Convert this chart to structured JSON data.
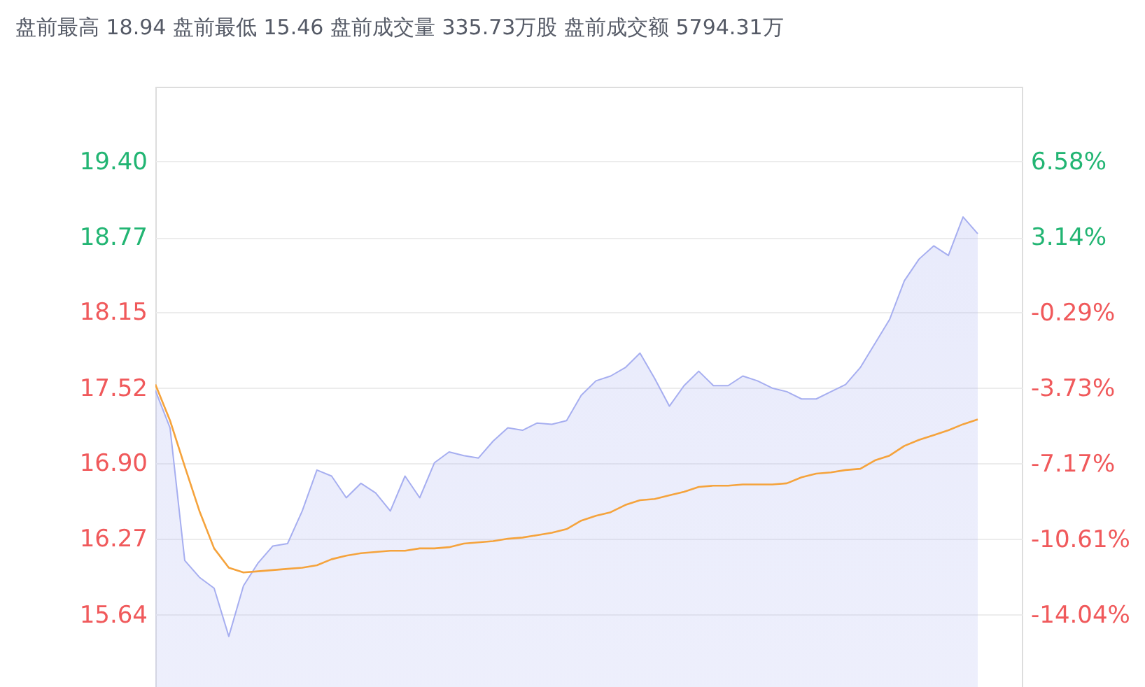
{
  "chart_data": {
    "type": "line",
    "title": "盘前最高 18.94 盘前最低 15.46 盘前成交量 335.73万股 盘前成交额 5794.31万",
    "categories": [
      null,
      null,
      null,
      null,
      null,
      null,
      null,
      null,
      null,
      null,
      null,
      null,
      null,
      null,
      null,
      null,
      null,
      null,
      null,
      null,
      null,
      null,
      null,
      null,
      null,
      null,
      null,
      null,
      null,
      null,
      null,
      null,
      null,
      null,
      null,
      null,
      null,
      null,
      null,
      null,
      null,
      null,
      null,
      null,
      null,
      null,
      null,
      null,
      null,
      null,
      null,
      null,
      null,
      null,
      null,
      null,
      null,
      null,
      null,
      null
    ],
    "series": [
      {
        "type": "area",
        "color": "#a6aef0",
        "values": [
          17.5,
          17.19,
          16.09,
          15.95,
          15.86,
          15.46,
          15.88,
          16.07,
          16.21,
          16.23,
          16.5,
          16.84,
          16.79,
          16.61,
          16.73,
          16.65,
          16.5,
          16.79,
          16.61,
          16.9,
          16.99,
          16.96,
          16.94,
          17.08,
          17.19,
          17.17,
          17.23,
          17.22,
          17.25,
          17.46,
          17.58,
          17.62,
          17.69,
          17.81,
          17.6,
          17.37,
          17.54,
          17.66,
          17.54,
          17.54,
          17.62,
          17.58,
          17.52,
          17.49,
          17.43,
          17.43,
          17.49,
          17.55,
          17.69,
          17.89,
          18.09,
          18.41,
          18.59,
          18.7,
          18.62,
          18.94,
          18.8,
          null,
          null,
          null
        ]
      },
      {
        "color": "#f5a33c",
        "values": [
          17.55,
          17.25,
          16.87,
          16.5,
          16.19,
          16.03,
          15.99,
          16.0,
          16.01,
          16.02,
          16.03,
          16.05,
          16.1,
          16.13,
          16.15,
          16.16,
          16.17,
          16.17,
          16.19,
          16.19,
          16.2,
          16.23,
          16.24,
          16.25,
          16.27,
          16.28,
          16.3,
          16.32,
          16.35,
          16.42,
          16.46,
          16.49,
          16.55,
          16.59,
          16.6,
          16.63,
          16.66,
          16.7,
          16.71,
          16.71,
          16.72,
          16.72,
          16.72,
          16.73,
          16.78,
          16.81,
          16.82,
          16.84,
          16.85,
          16.92,
          16.96,
          17.04,
          17.09,
          17.13,
          17.17,
          17.22,
          17.26,
          null,
          null,
          null
        ]
      }
    ],
    "ylim": [
      15.04,
      20.02
    ],
    "yticks": [
      {
        "value": 15.64,
        "label": "15.64"
      },
      {
        "value": 16.27,
        "label": "16.27"
      },
      {
        "value": 16.9,
        "label": "16.90"
      },
      {
        "value": 17.52,
        "label": "17.52"
      },
      {
        "value": 18.15,
        "label": "18.15"
      },
      {
        "value": 18.77,
        "label": "18.77"
      },
      {
        "value": 19.4,
        "label": "19.40"
      }
    ],
    "y2lim": [
      -17.33,
      9.98
    ],
    "y2ticks": [
      {
        "value": -14.04,
        "label": "-14.04%"
      },
      {
        "value": -10.61,
        "label": "-10.61%"
      },
      {
        "value": -7.17,
        "label": "-7.17%"
      },
      {
        "value": -3.73,
        "label": "-3.73%"
      },
      {
        "value": -0.29,
        "label": "-0.29%"
      },
      {
        "value": 3.14,
        "label": "3.14%"
      },
      {
        "value": 6.58,
        "label": "6.58%"
      }
    ],
    "grid": "y",
    "tick_labels": "y"
  }
}
